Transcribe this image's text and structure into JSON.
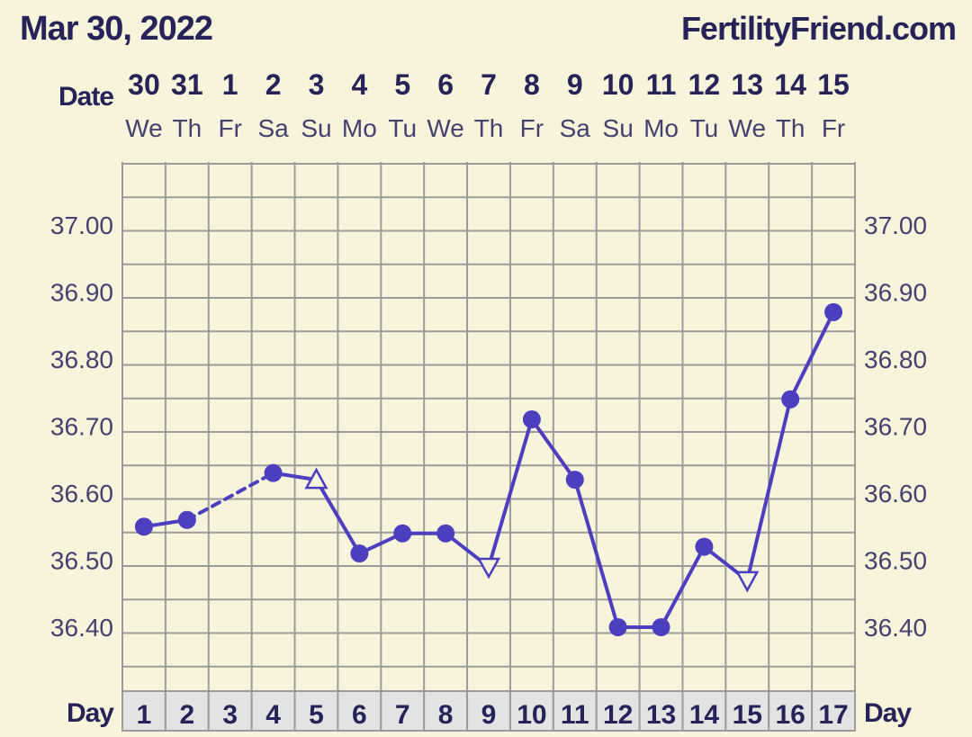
{
  "header": {
    "date": "Mar 30, 2022",
    "site": "FertilityFriend.com"
  },
  "labels": {
    "date_row": "Date",
    "day_row": "Day"
  },
  "colors": {
    "background": "#f8f4dc",
    "grid": "#9b9b9b",
    "line": "#4b3fbf",
    "text": "#262358",
    "day_cell": "#e3e3e3"
  },
  "chart_data": {
    "type": "line",
    "title": "",
    "xlabel": "Day",
    "ylabel": "",
    "x": [
      1,
      2,
      3,
      4,
      5,
      6,
      7,
      8,
      9,
      10,
      11,
      12,
      13,
      14,
      15,
      16,
      17
    ],
    "dates": [
      "30",
      "31",
      "1",
      "2",
      "3",
      "4",
      "5",
      "6",
      "7",
      "8",
      "9",
      "10",
      "11",
      "12",
      "13",
      "14",
      "15"
    ],
    "weekdays": [
      "We",
      "Th",
      "Fr",
      "Sa",
      "Su",
      "Mo",
      "Tu",
      "We",
      "Th",
      "Fr",
      "Sa",
      "Su",
      "Mo",
      "Tu",
      "We",
      "Th",
      "Fr"
    ],
    "y_ticks": [
      "37.00",
      "36.90",
      "36.80",
      "36.70",
      "36.60",
      "36.50",
      "36.40"
    ],
    "ylim": [
      36.32,
      37.09
    ],
    "grid": true,
    "series": [
      {
        "values": [
          36.55,
          36.56,
          null,
          36.63,
          36.62,
          36.51,
          36.54,
          36.54,
          36.49,
          36.71,
          36.62,
          36.4,
          36.4,
          36.52,
          36.47,
          36.74,
          36.87
        ],
        "markers": [
          "circle",
          "circle",
          "none",
          "circle",
          "triangle-up",
          "circle",
          "circle",
          "circle",
          "triangle-down",
          "circle",
          "circle",
          "circle",
          "circle",
          "circle",
          "triangle-down",
          "circle",
          "circle"
        ]
      }
    ]
  }
}
